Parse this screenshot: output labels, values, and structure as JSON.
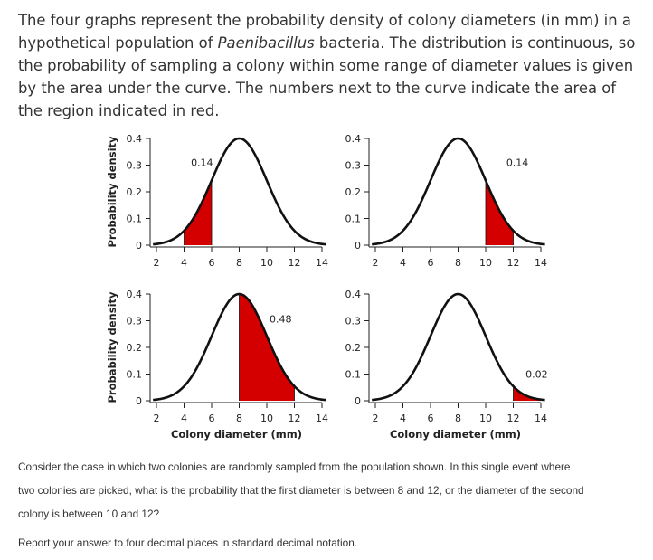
{
  "intro": {
    "part1": "The four graphs represent the probability density of colony diameters (in mm) in a hypothetical population of ",
    "species": "Paenibacillus",
    "part2": " bacteria. The distribution is continuous, so the probability of sampling a colony within some range of diameter values is given by the area under the curve. The numbers next to the curve indicate the area of the region indicated in red."
  },
  "colors": {
    "curve": "#111111",
    "shade": "#d40000",
    "axis": "#222222"
  },
  "chart_data": [
    {
      "type": "area",
      "title": "",
      "xlabel": "",
      "ylabel": "Probability density",
      "xlim": [
        2,
        14
      ],
      "ylim": [
        0,
        0.4
      ],
      "xticks": [
        "2",
        "4",
        "6",
        "8",
        "10",
        "12",
        "14"
      ],
      "yticks": [
        "0",
        "0.1",
        "0.2",
        "0.3",
        "0.4"
      ],
      "distribution": {
        "mean": 8,
        "sd": 2
      },
      "shaded": {
        "from": 4,
        "to": 6,
        "area": "0.14"
      }
    },
    {
      "type": "area",
      "title": "",
      "xlabel": "",
      "ylabel": "",
      "xlim": [
        2,
        14
      ],
      "ylim": [
        0,
        0.4
      ],
      "xticks": [
        "2",
        "4",
        "6",
        "8",
        "10",
        "12",
        "14"
      ],
      "yticks": [
        "0",
        "0.1",
        "0.2",
        "0.3",
        "0.4"
      ],
      "distribution": {
        "mean": 8,
        "sd": 2
      },
      "shaded": {
        "from": 10,
        "to": 12,
        "area": "0.14"
      }
    },
    {
      "type": "area",
      "title": "",
      "xlabel": "Colony diameter (mm)",
      "ylabel": "Probability density",
      "xlim": [
        2,
        14
      ],
      "ylim": [
        0,
        0.4
      ],
      "xticks": [
        "2",
        "4",
        "6",
        "8",
        "10",
        "12",
        "14"
      ],
      "yticks": [
        "0",
        "0.1",
        "0.2",
        "0.3",
        "0.4"
      ],
      "distribution": {
        "mean": 8,
        "sd": 2
      },
      "shaded": {
        "from": 8,
        "to": 12,
        "area": "0.48"
      }
    },
    {
      "type": "area",
      "title": "",
      "xlabel": "Colony diameter (mm)",
      "ylabel": "",
      "xlim": [
        2,
        14
      ],
      "ylim": [
        0,
        0.4
      ],
      "xticks": [
        "2",
        "4",
        "6",
        "8",
        "10",
        "12",
        "14"
      ],
      "yticks": [
        "0",
        "0.1",
        "0.2",
        "0.3",
        "0.4"
      ],
      "distribution": {
        "mean": 8,
        "sd": 2
      },
      "shaded": {
        "from": 12,
        "to": 14,
        "area": "0.02"
      }
    }
  ],
  "question": {
    "line1": "Consider the case in which two colonies are randomly sampled from the population shown. In this single event where",
    "line2": "two colonies are picked, what is the probability that the first diameter is between 8 and 12, or the diameter of the second",
    "line3": "colony is between 10 and 12?",
    "instruction": "Report your answer to four decimal places in standard decimal notation."
  }
}
